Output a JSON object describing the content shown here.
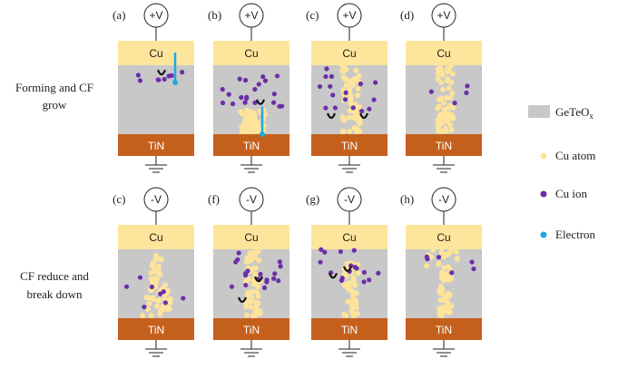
{
  "row_labels": [
    {
      "line1": "Forming and CF",
      "line2": "grow"
    },
    {
      "line1": "CF reduce and",
      "line2": "break down"
    }
  ],
  "panels": [
    {
      "label": "(a)",
      "voltage": "+V",
      "top": "Cu",
      "bottom": "TiN"
    },
    {
      "label": "(b)",
      "voltage": "+V",
      "top": "Cu",
      "bottom": "TiN"
    },
    {
      "label": "(c)",
      "voltage": "+V",
      "top": "Cu",
      "bottom": "TiN"
    },
    {
      "label": "(d)",
      "voltage": "+V",
      "top": "Cu",
      "bottom": "TiN"
    },
    {
      "label": "(c)",
      "voltage": "-V",
      "top": "Cu",
      "bottom": "TiN"
    },
    {
      "label": "(f)",
      "voltage": "-V",
      "top": "Cu",
      "bottom": "TiN"
    },
    {
      "label": "(g)",
      "voltage": "-V",
      "top": "Cu",
      "bottom": "TiN"
    },
    {
      "label": "(h)",
      "voltage": "-V",
      "top": "Cu",
      "bottom": "TiN"
    }
  ],
  "legend": [
    {
      "label": "GeTeO",
      "subscript": "x"
    },
    {
      "label": "Cu atom"
    },
    {
      "label": "Cu ion"
    },
    {
      "label": "Electron"
    }
  ]
}
